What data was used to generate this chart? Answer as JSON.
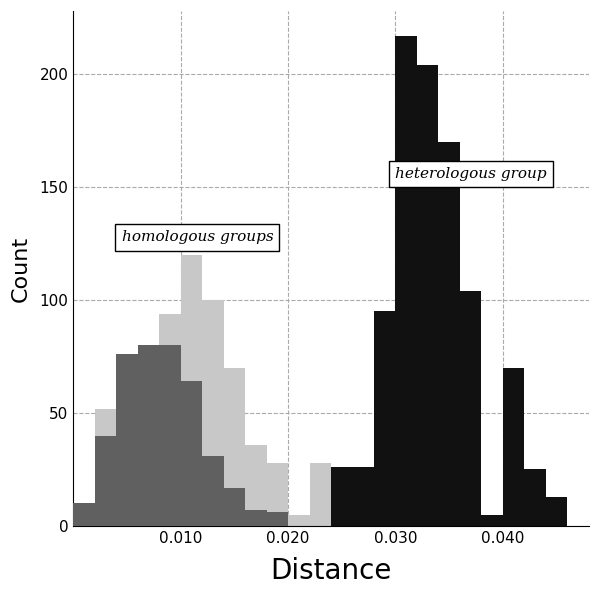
{
  "xlabel": "Distance",
  "ylabel": "Count",
  "xlabel_fontsize": 20,
  "ylabel_fontsize": 16,
  "background_color": "#ffffff",
  "yticks": [
    0,
    50,
    100,
    150,
    200
  ],
  "xticks": [
    0.01,
    0.02,
    0.03,
    0.04
  ],
  "xlim": [
    0.0,
    0.048
  ],
  "ylim": [
    0,
    228
  ],
  "grid_color": "#aaaaaa",
  "label_homologous": "homologous groups",
  "label_heterologous": "heterologous group",
  "canary_color": "#c8c8c8",
  "iberian_color": "#606060",
  "between_color": "#111111",
  "canary_bars": {
    "lefts": [
      0.0,
      0.002,
      0.004,
      0.006,
      0.008,
      0.01,
      0.012,
      0.014,
      0.016,
      0.018,
      0.02,
      0.022,
      0.024
    ],
    "heights": [
      8,
      52,
      76,
      76,
      94,
      120,
      100,
      70,
      36,
      28,
      5,
      28,
      7
    ]
  },
  "iberian_bars": {
    "lefts": [
      0.0,
      0.002,
      0.004,
      0.006,
      0.008,
      0.01,
      0.012,
      0.014,
      0.016,
      0.018
    ],
    "heights": [
      10,
      40,
      76,
      80,
      80,
      64,
      31,
      17,
      7,
      6
    ]
  },
  "between_bars": {
    "lefts": [
      0.024,
      0.026,
      0.028,
      0.03,
      0.032,
      0.034,
      0.036,
      0.038,
      0.04,
      0.042,
      0.044
    ],
    "heights": [
      26,
      26,
      95,
      217,
      204,
      170,
      104,
      5,
      70,
      25,
      13
    ]
  }
}
